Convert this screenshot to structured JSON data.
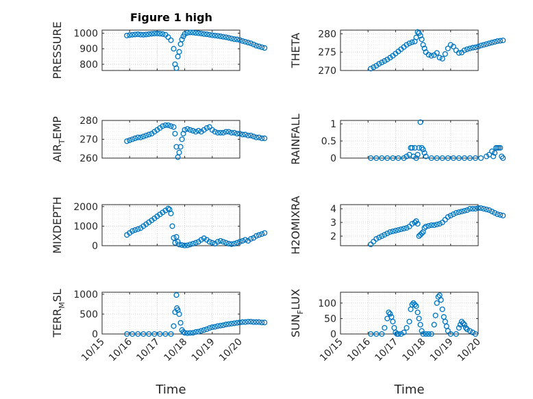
{
  "figure_title": "Figure 1 high",
  "colors": {
    "marker": "#0072BD",
    "axis": "#262626",
    "grid": "#c8c8c8",
    "minor_grid": "#e2e2e2"
  },
  "chart_data": [
    {
      "type": "scatter",
      "ylabel": "PRESSURE",
      "ylim": [
        760,
        1020
      ],
      "yticks": [
        800,
        900,
        1000
      ],
      "xticks": [],
      "xlabel": "",
      "x": [
        0.9,
        1.0,
        1.1,
        1.2,
        1.3,
        1.4,
        1.5,
        1.6,
        1.7,
        1.8,
        1.9,
        2.0,
        2.1,
        2.2,
        2.3,
        2.4,
        2.5,
        2.6,
        2.65,
        2.7,
        2.75,
        2.8,
        2.85,
        2.9,
        2.95,
        3.0,
        3.1,
        3.2,
        3.3,
        3.4,
        3.5,
        3.6,
        3.7,
        3.8,
        3.9,
        4.0,
        4.1,
        4.2,
        4.3,
        4.4,
        4.5,
        4.6,
        4.7,
        4.8,
        4.9,
        5.0,
        5.1,
        5.2,
        5.3,
        5.4,
        5.5,
        5.6,
        5.7,
        5.8,
        5.9
      ],
      "y": [
        985,
        988,
        990,
        992,
        993,
        991,
        990,
        992,
        994,
        996,
        998,
        999,
        997,
        995,
        990,
        975,
        955,
        900,
        800,
        775,
        850,
        880,
        930,
        960,
        980,
        995,
        1003,
        1005,
        1004,
        1002,
        1000,
        998,
        995,
        993,
        990,
        987,
        985,
        983,
        980,
        977,
        974,
        970,
        966,
        962,
        960,
        956,
        950,
        945,
        940,
        935,
        928,
        920,
        915,
        910,
        905
      ]
    },
    {
      "type": "scatter",
      "ylabel": "THETA",
      "ylim": [
        270,
        281
      ],
      "yticks": [
        270,
        275,
        280
      ],
      "xticks": [],
      "xlabel": "",
      "x": [
        1.1,
        1.2,
        1.3,
        1.4,
        1.5,
        1.6,
        1.7,
        1.8,
        1.9,
        2.0,
        2.1,
        2.2,
        2.3,
        2.4,
        2.5,
        2.6,
        2.7,
        2.75,
        2.8,
        2.85,
        2.9,
        2.95,
        3.0,
        3.05,
        3.1,
        3.2,
        3.3,
        3.4,
        3.5,
        3.6,
        3.7,
        3.8,
        3.9,
        4.0,
        4.1,
        4.2,
        4.3,
        4.4,
        4.5,
        4.6,
        4.7,
        4.8,
        4.9,
        5.0,
        5.1,
        5.2,
        5.3,
        5.4,
        5.5,
        5.6,
        5.7,
        5.8,
        5.9
      ],
      "y": [
        270.5,
        270.9,
        271.3,
        271.8,
        272.2,
        272.6,
        273.0,
        273.5,
        274.0,
        274.6,
        275.2,
        275.8,
        276.4,
        277.0,
        277.4,
        277.7,
        277.9,
        279.0,
        280.5,
        280.2,
        279.5,
        278.5,
        277.0,
        276.0,
        275.0,
        274.3,
        274.0,
        274.2,
        274.8,
        273.5,
        273.2,
        274.5,
        276.0,
        277.0,
        276.5,
        275.5,
        274.8,
        274.9,
        275.5,
        275.8,
        276.0,
        276.2,
        276.3,
        276.5,
        276.8,
        277.0,
        277.2,
        277.4,
        277.6,
        277.8,
        278.0,
        278.1,
        278.2
      ]
    },
    {
      "type": "scatter",
      "ylabel": "AIR_TEMP",
      "ylabel_main": "AIR",
      "ylabel_sub": "T",
      "ylabel_rest": "EMP",
      "ylim": [
        260,
        280
      ],
      "yticks": [
        260,
        270,
        280
      ],
      "xticks": [],
      "xlabel": "",
      "x": [
        0.9,
        1.0,
        1.1,
        1.2,
        1.3,
        1.4,
        1.5,
        1.6,
        1.7,
        1.8,
        1.9,
        2.0,
        2.1,
        2.2,
        2.3,
        2.4,
        2.5,
        2.6,
        2.65,
        2.7,
        2.75,
        2.8,
        2.85,
        2.9,
        2.95,
        3.0,
        3.1,
        3.2,
        3.3,
        3.4,
        3.5,
        3.6,
        3.7,
        3.8,
        3.9,
        4.0,
        4.1,
        4.2,
        4.3,
        4.4,
        4.5,
        4.6,
        4.7,
        4.8,
        4.9,
        5.0,
        5.1,
        5.2,
        5.3,
        5.4,
        5.5,
        5.6,
        5.7,
        5.8,
        5.9
      ],
      "y": [
        269,
        269.5,
        270,
        270.5,
        271,
        271,
        271.5,
        272,
        272.5,
        273,
        274,
        275,
        276,
        277,
        277.5,
        277.5,
        277,
        276.5,
        273,
        266,
        260.5,
        263,
        266,
        270,
        273,
        275,
        275.5,
        275,
        274.5,
        274,
        274.5,
        274,
        275,
        276,
        276.5,
        275,
        274,
        273.5,
        273.5,
        273.5,
        274,
        274,
        273.5,
        273.5,
        273,
        273,
        272.5,
        272.5,
        272,
        272,
        271.5,
        271,
        271,
        270.5,
        270.5
      ]
    },
    {
      "type": "scatter",
      "ylabel": "RAINFALL",
      "ylim": [
        0,
        1.1
      ],
      "yticks": [
        0,
        0.5,
        1
      ],
      "ytick_labels": [
        "0",
        "0.5",
        "1"
      ],
      "xticks": [],
      "xlabel": "",
      "x": [
        1.1,
        1.3,
        1.5,
        1.7,
        1.9,
        2.1,
        2.3,
        2.4,
        2.5,
        2.55,
        2.6,
        2.65,
        2.7,
        2.75,
        2.8,
        2.85,
        2.9,
        2.95,
        3.0,
        3.05,
        3.1,
        3.3,
        3.5,
        3.7,
        3.9,
        4.1,
        4.3,
        4.5,
        4.7,
        4.9,
        5.1,
        5.3,
        5.4,
        5.5,
        5.55,
        5.6,
        5.65,
        5.7,
        5.75,
        5.8,
        5.85,
        5.9
      ],
      "y": [
        0,
        0,
        0,
        0,
        0,
        0,
        0,
        0.05,
        0.1,
        0.3,
        0.3,
        0.05,
        0.3,
        0,
        0.1,
        0.3,
        1.05,
        0.3,
        0.25,
        0.15,
        0.05,
        0,
        0,
        0,
        0,
        0,
        0,
        0,
        0,
        0,
        0,
        0.05,
        0.1,
        0.2,
        0.05,
        0.15,
        0.3,
        0.3,
        0.3,
        0.3,
        0.05,
        0
      ]
    },
    {
      "type": "scatter",
      "ylabel": "MIXDEPTH",
      "ylim": [
        0,
        2100
      ],
      "yticks": [
        0,
        1000,
        2000
      ],
      "xticks": [],
      "xlabel": "",
      "x": [
        0.9,
        1.0,
        1.1,
        1.2,
        1.3,
        1.4,
        1.5,
        1.6,
        1.7,
        1.8,
        1.9,
        2.0,
        2.1,
        2.2,
        2.3,
        2.4,
        2.45,
        2.5,
        2.55,
        2.6,
        2.65,
        2.7,
        2.75,
        2.8,
        2.9,
        3.0,
        3.1,
        3.2,
        3.3,
        3.4,
        3.5,
        3.6,
        3.7,
        3.8,
        3.9,
        4.0,
        4.1,
        4.2,
        4.3,
        4.4,
        4.5,
        4.6,
        4.7,
        4.8,
        4.9,
        5.0,
        5.1,
        5.2,
        5.3,
        5.4,
        5.5,
        5.6,
        5.7,
        5.8,
        5.9
      ],
      "y": [
        550,
        650,
        750,
        800,
        850,
        900,
        1000,
        1100,
        1200,
        1300,
        1400,
        1500,
        1600,
        1700,
        1800,
        1900,
        1850,
        1650,
        1000,
        400,
        150,
        450,
        200,
        60,
        30,
        10,
        20,
        60,
        100,
        150,
        200,
        300,
        380,
        300,
        200,
        150,
        100,
        200,
        250,
        200,
        150,
        100,
        80,
        100,
        150,
        200,
        250,
        300,
        250,
        350,
        400,
        500,
        550,
        600,
        650
      ]
    },
    {
      "type": "scatter",
      "ylabel": "H2OMIXRA",
      "ylim": [
        1.3,
        4.3
      ],
      "yticks": [
        2,
        3,
        4
      ],
      "xticks": [],
      "xlabel": "",
      "x": [
        1.1,
        1.2,
        1.3,
        1.4,
        1.5,
        1.6,
        1.7,
        1.8,
        1.9,
        2.0,
        2.1,
        2.2,
        2.3,
        2.4,
        2.5,
        2.6,
        2.7,
        2.75,
        2.8,
        2.85,
        2.9,
        2.95,
        3.0,
        3.05,
        3.1,
        3.2,
        3.3,
        3.4,
        3.5,
        3.6,
        3.7,
        3.8,
        3.9,
        4.0,
        4.1,
        4.2,
        4.3,
        4.4,
        4.5,
        4.6,
        4.7,
        4.8,
        4.9,
        5.0,
        5.1,
        5.2,
        5.3,
        5.4,
        5.5,
        5.6,
        5.7,
        5.8,
        5.9
      ],
      "y": [
        1.4,
        1.6,
        1.8,
        1.9,
        2.0,
        2.1,
        2.2,
        2.3,
        2.35,
        2.4,
        2.45,
        2.5,
        2.55,
        2.6,
        2.7,
        2.9,
        3.0,
        3.1,
        2.9,
        2.0,
        2.1,
        2.2,
        2.3,
        2.6,
        2.7,
        2.75,
        2.8,
        2.8,
        2.85,
        2.9,
        3.0,
        3.2,
        3.4,
        3.5,
        3.6,
        3.7,
        3.75,
        3.8,
        3.85,
        3.9,
        4.0,
        4.0,
        4.0,
        4.05,
        4.05,
        4.0,
        3.95,
        3.9,
        3.8,
        3.7,
        3.6,
        3.55,
        3.5
      ]
    },
    {
      "type": "scatter",
      "ylabel": "TERR_MSL",
      "ylabel_main": "TERR",
      "ylabel_sub": "M",
      "ylabel_rest": "SL",
      "ylim": [
        0,
        1050
      ],
      "yticks": [
        0,
        500,
        1000
      ],
      "xticks": [
        "10/15",
        "10/16",
        "10/17",
        "10/18",
        "10/19",
        "10/20"
      ],
      "xlabel": "Time",
      "x": [
        0.9,
        1.1,
        1.3,
        1.5,
        1.7,
        1.9,
        2.1,
        2.3,
        2.5,
        2.6,
        2.65,
        2.7,
        2.72,
        2.75,
        2.8,
        2.85,
        2.9,
        2.95,
        3.0,
        3.1,
        3.2,
        3.3,
        3.4,
        3.5,
        3.6,
        3.7,
        3.8,
        3.9,
        4.0,
        4.1,
        4.2,
        4.3,
        4.4,
        4.5,
        4.6,
        4.7,
        4.8,
        4.9,
        5.0,
        5.1,
        5.2,
        5.3,
        5.4,
        5.5,
        5.6,
        5.7,
        5.8,
        5.9
      ],
      "y": [
        0,
        0,
        0,
        0,
        0,
        0,
        0,
        0,
        0,
        200,
        550,
        980,
        650,
        600,
        500,
        280,
        100,
        50,
        30,
        20,
        25,
        30,
        50,
        60,
        80,
        100,
        120,
        150,
        170,
        180,
        200,
        210,
        220,
        240,
        250,
        260,
        270,
        280,
        290,
        300,
        300,
        310,
        310,
        300,
        300,
        300,
        290,
        290
      ]
    },
    {
      "type": "scatter",
      "ylabel": "SUN_FLUX",
      "ylabel_main": "SUN",
      "ylabel_sub": "F",
      "ylabel_rest": "LUX",
      "ylim": [
        0,
        135
      ],
      "yticks": [
        0,
        50,
        100
      ],
      "xticks": [
        "10/15",
        "10/16",
        "10/17",
        "10/18",
        "10/19",
        "10/20"
      ],
      "xlabel": "Time",
      "x": [
        1.1,
        1.3,
        1.5,
        1.6,
        1.7,
        1.75,
        1.8,
        1.85,
        1.9,
        1.95,
        2.0,
        2.05,
        2.1,
        2.2,
        2.3,
        2.4,
        2.5,
        2.55,
        2.6,
        2.65,
        2.7,
        2.75,
        2.8,
        2.85,
        2.9,
        2.95,
        3.0,
        3.1,
        3.2,
        3.3,
        3.4,
        3.45,
        3.5,
        3.55,
        3.6,
        3.65,
        3.7,
        3.75,
        3.8,
        3.85,
        3.9,
        4.0,
        4.2,
        4.3,
        4.35,
        4.4,
        4.45,
        4.5,
        4.55,
        4.6,
        4.7,
        4.8,
        4.9
      ],
      "y": [
        0,
        0,
        0,
        20,
        50,
        70,
        65,
        55,
        40,
        20,
        5,
        0,
        0,
        0,
        5,
        20,
        40,
        80,
        95,
        100,
        95,
        90,
        70,
        50,
        30,
        10,
        0,
        0,
        0,
        0,
        30,
        60,
        100,
        120,
        125,
        110,
        80,
        55,
        40,
        25,
        10,
        0,
        0,
        20,
        30,
        40,
        35,
        30,
        20,
        15,
        10,
        5,
        0
      ]
    }
  ]
}
